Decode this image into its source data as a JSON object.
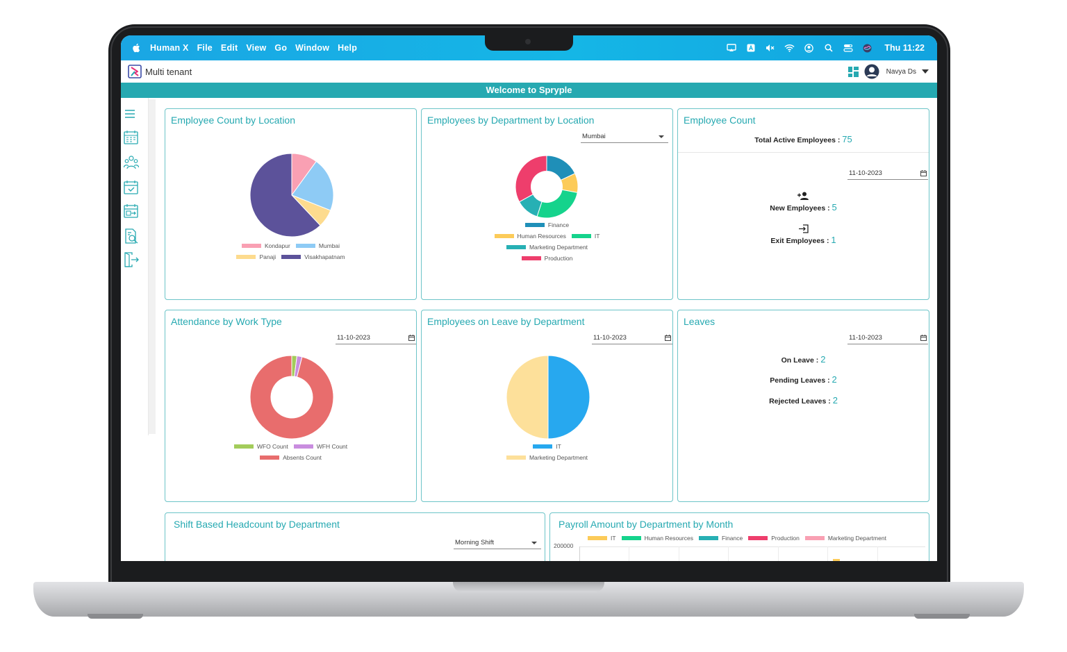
{
  "menubar": {
    "app_name": "Human X",
    "items": [
      "File",
      "Edit",
      "View",
      "Go",
      "Window",
      "Help"
    ],
    "clock": "Thu 11:22",
    "icons": [
      "airplay-icon",
      "keyboard-a-icon",
      "mute-icon",
      "wifi-icon",
      "user-circle-icon",
      "search-icon",
      "control-center-icon",
      "siri-icon"
    ]
  },
  "header": {
    "brand": "Multi tenant",
    "user_name": "Navya Ds"
  },
  "welcome": "Welcome to Spryple",
  "sidebar": {
    "icons": [
      "menu-icon",
      "calendar-grid-icon",
      "team-icon",
      "calendar-check-icon",
      "calendar-export-icon",
      "report-icon",
      "logout-icon"
    ]
  },
  "cards": {
    "emp_by_location": {
      "title": "Employee Count by Location",
      "legend": [
        "Kondapur",
        "Mumbai",
        "Panaji",
        "Visakhapatnam"
      ]
    },
    "emp_by_dept_loc": {
      "title": "Employees by Department by Location",
      "location_select": "Mumbai",
      "legend": [
        "Finance",
        "Human Resources",
        "IT",
        "Marketing Department",
        "Production"
      ]
    },
    "employee_count": {
      "title": "Employee Count",
      "total_label": "Total Active Employees :",
      "total_value": "75",
      "date": "11-10-2023",
      "new_label": "New Employees :",
      "new_value": "5",
      "exit_label": "Exit Employees :",
      "exit_value": "1"
    },
    "attendance": {
      "title": "Attendance by Work Type",
      "date": "11-10-2023",
      "legend": [
        "WFO Count",
        "WFH Count",
        "Absents Count"
      ]
    },
    "leave_by_dept": {
      "title": "Employees on Leave by Department",
      "date": "11-10-2023",
      "legend": [
        "IT",
        "Marketing Department"
      ]
    },
    "leaves": {
      "title": "Leaves",
      "date": "11-10-2023",
      "on_leave_label": "On Leave :",
      "on_leave_value": "2",
      "pending_label": "Pending Leaves :",
      "pending_value": "2",
      "rejected_label": "Rejected Leaves :",
      "rejected_value": "2"
    },
    "shift_headcount": {
      "title": "Shift Based Headcount by Department",
      "shift_select": "Morning Shift"
    },
    "payroll": {
      "title": "Payroll Amount by Department by Month",
      "legend": [
        "IT",
        "Human Resources",
        "Finance",
        "Production",
        "Marketing Department"
      ],
      "y_tick_top": "200000"
    }
  },
  "colors": {
    "accent": "#26a9b1",
    "menubar": "#15b6e6",
    "kondapur": "#f9a0b3",
    "mumbai": "#8ecbf5",
    "panaji": "#fddb8e",
    "visakhapatnam": "#5c529a",
    "finance": "#1f8fb8",
    "human_resources": "#fccb59",
    "it": "#15d38c",
    "marketing": "#27b0b4",
    "production": "#ee3e6c",
    "wfo": "#a3cc5b",
    "wfh": "#c98ddf",
    "absents": "#e86d6d",
    "leave_it": "#27a8ef",
    "leave_marketing": "#fde09a"
  },
  "chart_data": [
    {
      "type": "pie",
      "title": "Employee Count by Location",
      "categories": [
        "Kondapur",
        "Mumbai",
        "Panaji",
        "Visakhapatnam"
      ],
      "values": [
        10,
        21,
        7,
        62
      ],
      "legend": "bottom"
    },
    {
      "type": "pie",
      "title": "Employees by Department by Location",
      "donut": true,
      "categories": [
        "Finance",
        "Human Resources",
        "IT",
        "Marketing Department",
        "Production"
      ],
      "values": [
        18,
        10,
        27,
        12,
        33
      ],
      "legend": "bottom"
    },
    {
      "type": "pie",
      "title": "Attendance by Work Type",
      "donut": true,
      "categories": [
        "WFO Count",
        "WFH Count",
        "Absents Count"
      ],
      "values": [
        2,
        2,
        96
      ],
      "legend": "bottom"
    },
    {
      "type": "pie",
      "title": "Employees on Leave by Department",
      "categories": [
        "IT",
        "Marketing Department"
      ],
      "values": [
        1,
        1
      ],
      "legend": "bottom"
    }
  ]
}
